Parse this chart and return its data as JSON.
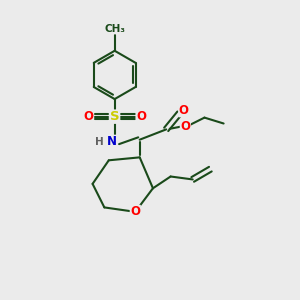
{
  "bg_color": "#ebebeb",
  "bond_color": "#1a4a1a",
  "bond_lw": 1.5,
  "atom_colors": {
    "S": "#cccc00",
    "O": "#ff0000",
    "N": "#0000cd",
    "C": "#1a4a1a",
    "H": "#606060"
  },
  "font_size": 8.5,
  "fig_size": [
    3.0,
    3.0
  ],
  "dpi": 100,
  "xlim": [
    0,
    10
  ],
  "ylim": [
    0,
    10
  ]
}
